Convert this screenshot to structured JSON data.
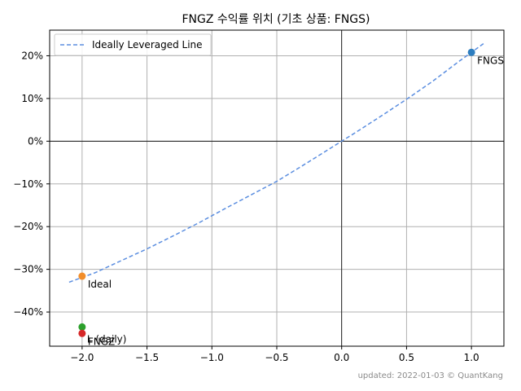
{
  "chart_data": {
    "type": "scatter",
    "title": "FNGZ 수익률 위치 (기초 상품: FNGS)",
    "xlabel": "",
    "ylabel": "",
    "xlim": [
      -2.25,
      1.25
    ],
    "ylim": [
      -48,
      26
    ],
    "x_ticks": [
      -2.0,
      -1.5,
      -1.0,
      -0.5,
      0.0,
      0.5,
      1.0
    ],
    "x_tick_labels": [
      "−2.0",
      "−1.5",
      "−1.0",
      "−0.5",
      "0.0",
      "0.5",
      "1.0"
    ],
    "y_ticks": [
      20,
      10,
      0,
      -10,
      -20,
      -30,
      -40
    ],
    "y_tick_labels": [
      "20%",
      "10%",
      "0%",
      "−10%",
      "−20%",
      "−30%",
      "−40%"
    ],
    "grid": true,
    "legend_position": "top-left",
    "line": {
      "name": "Ideally Leveraged Line",
      "color": "#5b8ee0",
      "style": "dashed",
      "x": [
        -2.1,
        -1.9,
        -1.7,
        -1.5,
        -1.3,
        -1.1,
        -0.9,
        -0.7,
        -0.5,
        -0.3,
        -0.1,
        0.0,
        0.1,
        0.3,
        0.5,
        0.7,
        0.9,
        1.0,
        1.1
      ],
      "y": [
        -33.0,
        -30.8,
        -28.0,
        -25.2,
        -22.2,
        -19.1,
        -15.8,
        -12.6,
        -9.4,
        -5.7,
        -1.9,
        0.0,
        1.9,
        5.8,
        9.8,
        14.0,
        18.6,
        20.8,
        23.0
      ]
    },
    "points": [
      {
        "label": "FNGS",
        "x": 1.0,
        "y": 20.8,
        "color": "#2e7ec0",
        "label_anchor": "below-right"
      },
      {
        "label": "Ideal",
        "x": -2.0,
        "y": -31.6,
        "color": "#f28e2b",
        "label_anchor": "below-right"
      },
      {
        "label": "L (daily)",
        "x": -2.0,
        "y": -43.5,
        "color": "#2ca02c",
        "label_anchor": "right"
      },
      {
        "label": "FNGZ",
        "x": -2.0,
        "y": -45.0,
        "color": "#d62728",
        "label_anchor": "below-right"
      }
    ]
  },
  "footer": "updated: 2022-01-03 © QuantKang"
}
